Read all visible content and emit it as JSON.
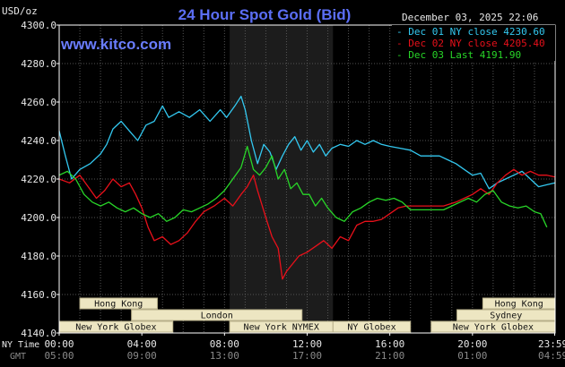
{
  "header": {
    "units_label": "USD/oz",
    "title": "24 Hour Spot Gold (Bid)",
    "website": "www.kitco.com",
    "datetime": "December 03, 2025 22:06"
  },
  "colors": {
    "background": "#000000",
    "plot_border": "#ffffff",
    "grid": "#555555",
    "highlight": "#1c1c1c",
    "title": "#5b6ef5",
    "website": "#6a7dff",
    "session_bar": "#ede6c2",
    "session_bar_border": "#b8b08a"
  },
  "chart_data": {
    "type": "line",
    "title": "24 Hour Spot Gold (Bid)",
    "ylabel": "USD/oz",
    "ylim": [
      4140,
      4300
    ],
    "yticks": [
      {
        "value": 4300,
        "label": "4300.0"
      },
      {
        "value": 4280,
        "label": "4280.0"
      },
      {
        "value": 4260,
        "label": "4260.0"
      },
      {
        "value": 4240,
        "label": "4240.0"
      },
      {
        "value": 4220,
        "label": "4220.0"
      },
      {
        "value": 4200,
        "label": "4200.0"
      },
      {
        "value": 4180,
        "label": "4180.0"
      },
      {
        "value": 4160,
        "label": "4160.0"
      },
      {
        "value": 4140,
        "label": "4140.0"
      }
    ],
    "xlim": [
      0,
      24
    ],
    "xticks": [
      {
        "hour": 0,
        "ny": "00:00",
        "gmt": "05:00"
      },
      {
        "hour": 4,
        "ny": "04:00",
        "gmt": "09:00"
      },
      {
        "hour": 8,
        "ny": "08:00",
        "gmt": "13:00"
      },
      {
        "hour": 12,
        "ny": "12:00",
        "gmt": "17:00"
      },
      {
        "hour": 16,
        "ny": "16:00",
        "gmt": "21:00"
      },
      {
        "hour": 20,
        "ny": "20:00",
        "gmt": "01:00"
      },
      {
        "hour": 23.98,
        "ny": "23:59",
        "gmt": "04:59"
      }
    ],
    "x_row_labels": {
      "ny": "NY Time",
      "gmt": "GMT"
    },
    "highlight_range": [
      8.25,
      13.25
    ],
    "legend_position": "top-right",
    "series": [
      {
        "name": "Dec 01 NY close 4230.60",
        "color": "#33c8f0",
        "points": [
          [
            0,
            4245
          ],
          [
            0.3,
            4232
          ],
          [
            0.6,
            4220
          ],
          [
            1.0,
            4225
          ],
          [
            1.5,
            4228
          ],
          [
            2.0,
            4233
          ],
          [
            2.3,
            4238
          ],
          [
            2.6,
            4246
          ],
          [
            3.0,
            4250
          ],
          [
            3.4,
            4245
          ],
          [
            3.8,
            4240
          ],
          [
            4.2,
            4248
          ],
          [
            4.6,
            4250
          ],
          [
            5.0,
            4258
          ],
          [
            5.3,
            4252
          ],
          [
            5.8,
            4255
          ],
          [
            6.3,
            4252
          ],
          [
            6.8,
            4256
          ],
          [
            7.3,
            4250
          ],
          [
            7.8,
            4256
          ],
          [
            8.1,
            4252
          ],
          [
            8.5,
            4258
          ],
          [
            8.8,
            4263
          ],
          [
            9.0,
            4256
          ],
          [
            9.3,
            4240
          ],
          [
            9.6,
            4228
          ],
          [
            9.9,
            4238
          ],
          [
            10.2,
            4234
          ],
          [
            10.5,
            4225
          ],
          [
            10.8,
            4232
          ],
          [
            11.1,
            4238
          ],
          [
            11.4,
            4242
          ],
          [
            11.7,
            4235
          ],
          [
            12.0,
            4240
          ],
          [
            12.3,
            4234
          ],
          [
            12.6,
            4238
          ],
          [
            12.9,
            4232
          ],
          [
            13.2,
            4236
          ],
          [
            13.6,
            4238
          ],
          [
            14.0,
            4237
          ],
          [
            14.4,
            4240
          ],
          [
            14.8,
            4238
          ],
          [
            15.2,
            4240
          ],
          [
            15.6,
            4238
          ],
          [
            16.0,
            4237
          ],
          [
            16.5,
            4236
          ],
          [
            17.0,
            4235
          ],
          [
            17.5,
            4232
          ],
          [
            18.0,
            4232
          ],
          [
            18.4,
            4232
          ],
          [
            18.8,
            4230
          ],
          [
            19.2,
            4228
          ],
          [
            19.6,
            4225
          ],
          [
            20.0,
            4222
          ],
          [
            20.4,
            4223
          ],
          [
            20.8,
            4215
          ],
          [
            21.2,
            4218
          ],
          [
            21.6,
            4220
          ],
          [
            22.0,
            4222
          ],
          [
            22.4,
            4224
          ],
          [
            22.8,
            4220
          ],
          [
            23.2,
            4216
          ],
          [
            23.6,
            4217
          ],
          [
            24.0,
            4218
          ]
        ]
      },
      {
        "name": "Dec 02 NY close 4205.40",
        "color": "#e8101a",
        "points": [
          [
            0,
            4220
          ],
          [
            0.5,
            4218
          ],
          [
            1.0,
            4222
          ],
          [
            1.4,
            4216
          ],
          [
            1.8,
            4210
          ],
          [
            2.2,
            4214
          ],
          [
            2.6,
            4220
          ],
          [
            3.0,
            4216
          ],
          [
            3.4,
            4218
          ],
          [
            3.7,
            4212
          ],
          [
            4.0,
            4205
          ],
          [
            4.3,
            4195
          ],
          [
            4.6,
            4188
          ],
          [
            5.0,
            4190
          ],
          [
            5.4,
            4186
          ],
          [
            5.8,
            4188
          ],
          [
            6.2,
            4192
          ],
          [
            6.6,
            4198
          ],
          [
            7.0,
            4203
          ],
          [
            7.5,
            4206
          ],
          [
            8.0,
            4210
          ],
          [
            8.4,
            4206
          ],
          [
            8.8,
            4212
          ],
          [
            9.1,
            4216
          ],
          [
            9.4,
            4222
          ],
          [
            9.6,
            4214
          ],
          [
            10.0,
            4200
          ],
          [
            10.3,
            4190
          ],
          [
            10.6,
            4184
          ],
          [
            10.8,
            4168
          ],
          [
            11.0,
            4172
          ],
          [
            11.3,
            4176
          ],
          [
            11.6,
            4180
          ],
          [
            12.0,
            4182
          ],
          [
            12.4,
            4185
          ],
          [
            12.8,
            4188
          ],
          [
            13.2,
            4184
          ],
          [
            13.6,
            4190
          ],
          [
            14.0,
            4188
          ],
          [
            14.4,
            4196
          ],
          [
            14.8,
            4198
          ],
          [
            15.2,
            4198
          ],
          [
            15.6,
            4199
          ],
          [
            16.0,
            4202
          ],
          [
            16.4,
            4205
          ],
          [
            16.8,
            4206
          ],
          [
            17.4,
            4206
          ],
          [
            18.0,
            4206
          ],
          [
            18.6,
            4206
          ],
          [
            19.2,
            4208
          ],
          [
            19.6,
            4210
          ],
          [
            20.0,
            4212
          ],
          [
            20.4,
            4215
          ],
          [
            20.8,
            4212
          ],
          [
            21.2,
            4218
          ],
          [
            21.6,
            4222
          ],
          [
            22.0,
            4225
          ],
          [
            22.4,
            4222
          ],
          [
            22.8,
            4224
          ],
          [
            23.2,
            4222
          ],
          [
            23.6,
            4222
          ],
          [
            24.0,
            4221
          ]
        ]
      },
      {
        "name": "Dec 03 Last 4191.90",
        "color": "#28d628",
        "points": [
          [
            0,
            4222
          ],
          [
            0.4,
            4224
          ],
          [
            0.8,
            4220
          ],
          [
            1.2,
            4212
          ],
          [
            1.6,
            4208
          ],
          [
            2.0,
            4206
          ],
          [
            2.4,
            4208
          ],
          [
            2.8,
            4205
          ],
          [
            3.2,
            4203
          ],
          [
            3.6,
            4205
          ],
          [
            4.0,
            4202
          ],
          [
            4.4,
            4200
          ],
          [
            4.8,
            4202
          ],
          [
            5.2,
            4198
          ],
          [
            5.6,
            4200
          ],
          [
            6.0,
            4204
          ],
          [
            6.4,
            4203
          ],
          [
            6.8,
            4205
          ],
          [
            7.2,
            4207
          ],
          [
            7.6,
            4210
          ],
          [
            8.0,
            4214
          ],
          [
            8.4,
            4220
          ],
          [
            8.8,
            4226
          ],
          [
            9.1,
            4237
          ],
          [
            9.4,
            4225
          ],
          [
            9.7,
            4222
          ],
          [
            10.0,
            4226
          ],
          [
            10.3,
            4232
          ],
          [
            10.6,
            4220
          ],
          [
            10.9,
            4225
          ],
          [
            11.2,
            4215
          ],
          [
            11.5,
            4218
          ],
          [
            11.8,
            4212
          ],
          [
            12.1,
            4212
          ],
          [
            12.4,
            4206
          ],
          [
            12.7,
            4210
          ],
          [
            13.0,
            4205
          ],
          [
            13.4,
            4200
          ],
          [
            13.8,
            4198
          ],
          [
            14.2,
            4203
          ],
          [
            14.6,
            4205
          ],
          [
            15.0,
            4208
          ],
          [
            15.4,
            4210
          ],
          [
            15.8,
            4209
          ],
          [
            16.2,
            4210
          ],
          [
            16.6,
            4208
          ],
          [
            17.0,
            4204
          ],
          [
            17.6,
            4204
          ],
          [
            18.2,
            4204
          ],
          [
            18.6,
            4204
          ],
          [
            19.0,
            4206
          ],
          [
            19.4,
            4208
          ],
          [
            19.8,
            4210
          ],
          [
            20.2,
            4208
          ],
          [
            20.6,
            4212
          ],
          [
            21.0,
            4214
          ],
          [
            21.4,
            4208
          ],
          [
            21.8,
            4206
          ],
          [
            22.2,
            4205
          ],
          [
            22.6,
            4206
          ],
          [
            23.0,
            4203
          ],
          [
            23.3,
            4202
          ],
          [
            23.6,
            4195
          ]
        ]
      }
    ],
    "sessions": [
      {
        "name": "Hong Kong",
        "start": 1.0,
        "end": 4.75,
        "row": 0
      },
      {
        "name": "London",
        "start": 3.5,
        "end": 11.75,
        "row": 1
      },
      {
        "name": "New York Globex",
        "start": 0,
        "end": 5.5,
        "row": 2
      },
      {
        "name": "New York NYMEX",
        "start": 8.25,
        "end": 13.25,
        "row": 2
      },
      {
        "name": "NY Globex",
        "start": 13.25,
        "end": 17.0,
        "row": 2
      },
      {
        "name": "Hong Kong",
        "start": 20.5,
        "end": 24.0,
        "row": 0
      },
      {
        "name": "Sydney",
        "start": 19.25,
        "end": 24.0,
        "row": 1
      },
      {
        "name": "New York Globex",
        "start": 18.0,
        "end": 24.0,
        "row": 2
      }
    ]
  }
}
